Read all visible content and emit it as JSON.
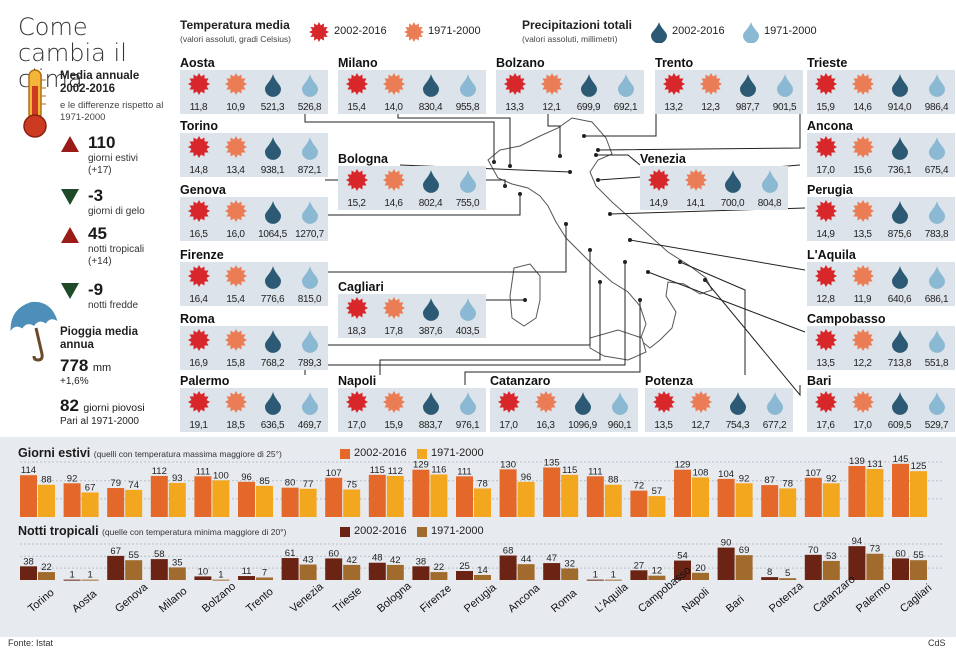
{
  "title": "Come cambia il clima",
  "legend": {
    "temp_title": "Temperatura media",
    "temp_sub": "(valori assoluti, gradi Celsius)",
    "prec_title": "Precipitazioni totali",
    "prec_sub": "(valori assoluti, millimetri)",
    "period_new": "2002-2016",
    "period_old": "1971-2000"
  },
  "colors": {
    "temp_new": "#d7272a",
    "temp_old": "#ea7d55",
    "prec_new": "#2c5a75",
    "prec_old": "#8bb8d2",
    "bar_estivi_new": "#e4682a",
    "bar_estivi_old": "#f3a71f",
    "bar_notti_new": "#6b2413",
    "bar_notti_old": "#a06b2c",
    "card_bg": "#dde3ea",
    "panel_bg": "#e7ebf0"
  },
  "summary": {
    "title": "Media annuale 2002-2016",
    "sub": "e le differenze rispetto al 1971-2000",
    "items": [
      {
        "num": "110",
        "label": "giorni estivi",
        "extra": "(+17)",
        "dir": "up"
      },
      {
        "num": "-3",
        "label": "giorni di gelo",
        "extra": "",
        "dir": "down"
      },
      {
        "num": "45",
        "label": "notti tropicali",
        "extra": "(+14)",
        "dir": "up"
      },
      {
        "num": "-9",
        "label": "notti fredde",
        "extra": "",
        "dir": "down"
      }
    ],
    "rain_title": "Pioggia media annua",
    "rain_value": "778",
    "rain_unit": "mm",
    "rain_change": "+1,6%",
    "rainy_days": "82",
    "rainy_label": "giorni piovosi",
    "rainy_sub": "Pari al 1971-2000"
  },
  "cities": [
    {
      "name": "Aosta",
      "t_new": "11,8",
      "t_old": "10,9",
      "p_new": "521,3",
      "p_old": "526,8"
    },
    {
      "name": "Milano",
      "t_new": "15,4",
      "t_old": "14,0",
      "p_new": "830,4",
      "p_old": "955,8"
    },
    {
      "name": "Bolzano",
      "t_new": "13,3",
      "t_old": "12,1",
      "p_new": "699,9",
      "p_old": "692,1"
    },
    {
      "name": "Trento",
      "t_new": "13,2",
      "t_old": "12,3",
      "p_new": "987,7",
      "p_old": "901,5"
    },
    {
      "name": "Trieste",
      "t_new": "15,9",
      "t_old": "14,6",
      "p_new": "914,0",
      "p_old": "986,4"
    },
    {
      "name": "Torino",
      "t_new": "14,8",
      "t_old": "13,4",
      "p_new": "938,1",
      "p_old": "872,1"
    },
    {
      "name": "Bologna",
      "t_new": "15,2",
      "t_old": "14,6",
      "p_new": "802,4",
      "p_old": "755,0"
    },
    {
      "name": "Venezia",
      "t_new": "14,9",
      "t_old": "14,1",
      "p_new": "700,0",
      "p_old": "804,8"
    },
    {
      "name": "Ancona",
      "t_new": "17,0",
      "t_old": "15,6",
      "p_new": "736,1",
      "p_old": "675,4"
    },
    {
      "name": "Genova",
      "t_new": "16,5",
      "t_old": "16,0",
      "p_new": "1064,5",
      "p_old": "1270,7"
    },
    {
      "name": "Perugia",
      "t_new": "14,9",
      "t_old": "13,5",
      "p_new": "875,6",
      "p_old": "783,8"
    },
    {
      "name": "Firenze",
      "t_new": "16,4",
      "t_old": "15,4",
      "p_new": "776,6",
      "p_old": "815,0"
    },
    {
      "name": "L'Aquila",
      "t_new": "12,8",
      "t_old": "11,9",
      "p_new": "640,6",
      "p_old": "686,1"
    },
    {
      "name": "Cagliari",
      "t_new": "18,3",
      "t_old": "17,8",
      "p_new": "387,6",
      "p_old": "403,5"
    },
    {
      "name": "Roma",
      "t_new": "16,9",
      "t_old": "15,8",
      "p_new": "768,2",
      "p_old": "789,3"
    },
    {
      "name": "Campobasso",
      "t_new": "13,5",
      "t_old": "12,2",
      "p_new": "713,8",
      "p_old": "551,8"
    },
    {
      "name": "Palermo",
      "t_new": "19,1",
      "t_old": "18,5",
      "p_new": "636,5",
      "p_old": "469,7"
    },
    {
      "name": "Napoli",
      "t_new": "17,0",
      "t_old": "15,9",
      "p_new": "883,7",
      "p_old": "976,1"
    },
    {
      "name": "Catanzaro",
      "t_new": "17,0",
      "t_old": "16,3",
      "p_new": "1096,9",
      "p_old": "960,1"
    },
    {
      "name": "Potenza",
      "t_new": "13,5",
      "t_old": "12,7",
      "p_new": "754,3",
      "p_old": "677,2"
    },
    {
      "name": "Bari",
      "t_new": "17,6",
      "t_old": "17,0",
      "p_new": "609,5",
      "p_old": "529,7"
    }
  ],
  "chart_data": [
    {
      "type": "bar",
      "title": "Giorni estivi",
      "subtitle": "(quelli con temperatura massima maggiore di 25°)",
      "categories": [
        "Torino",
        "Aosta",
        "Genova",
        "Milano",
        "Bolzano",
        "Trento",
        "Venezia",
        "Trieste",
        "Bologna",
        "Firenze",
        "Perugia",
        "Ancona",
        "Roma",
        "L'Aquila",
        "Campobasso",
        "Napoli",
        "Bari",
        "Potenza",
        "Catanzaro",
        "Palermo",
        "Cagliari"
      ],
      "series": [
        {
          "name": "2002-2016",
          "values": [
            114,
            92,
            79,
            112,
            111,
            96,
            80,
            107,
            115,
            129,
            111,
            130,
            135,
            111,
            72,
            129,
            104,
            87,
            107,
            139,
            145
          ]
        },
        {
          "name": "1971-2000",
          "values": [
            88,
            67,
            74,
            93,
            100,
            85,
            77,
            75,
            112,
            116,
            78,
            96,
            115,
            88,
            57,
            108,
            92,
            78,
            92,
            131,
            125
          ]
        }
      ],
      "ylim": [
        0,
        150
      ]
    },
    {
      "type": "bar",
      "title": "Notti tropicali",
      "subtitle": "(quelle con temperatura minima maggiore di 20°)",
      "categories": [
        "Torino",
        "Aosta",
        "Genova",
        "Milano",
        "Bolzano",
        "Trento",
        "Venezia",
        "Trieste",
        "Bologna",
        "Firenze",
        "Perugia",
        "Ancona",
        "Roma",
        "L'Aquila",
        "Campobasso",
        "Napoli",
        "Bari",
        "Potenza",
        "Catanzaro",
        "Palermo",
        "Cagliari"
      ],
      "series": [
        {
          "name": "2002-2016",
          "values": [
            38,
            1,
            67,
            58,
            10,
            11,
            61,
            60,
            48,
            38,
            25,
            68,
            47,
            1,
            27,
            54,
            90,
            8,
            70,
            94,
            60
          ]
        },
        {
          "name": "1971-2000",
          "values": [
            22,
            1,
            55,
            35,
            1,
            7,
            43,
            42,
            42,
            22,
            14,
            44,
            32,
            1,
            12,
            20,
            69,
            5,
            53,
            73,
            55
          ]
        }
      ],
      "ylim": [
        0,
        100
      ]
    }
  ],
  "footer": {
    "source": "Fonte: Istat",
    "credit": "CdS"
  }
}
